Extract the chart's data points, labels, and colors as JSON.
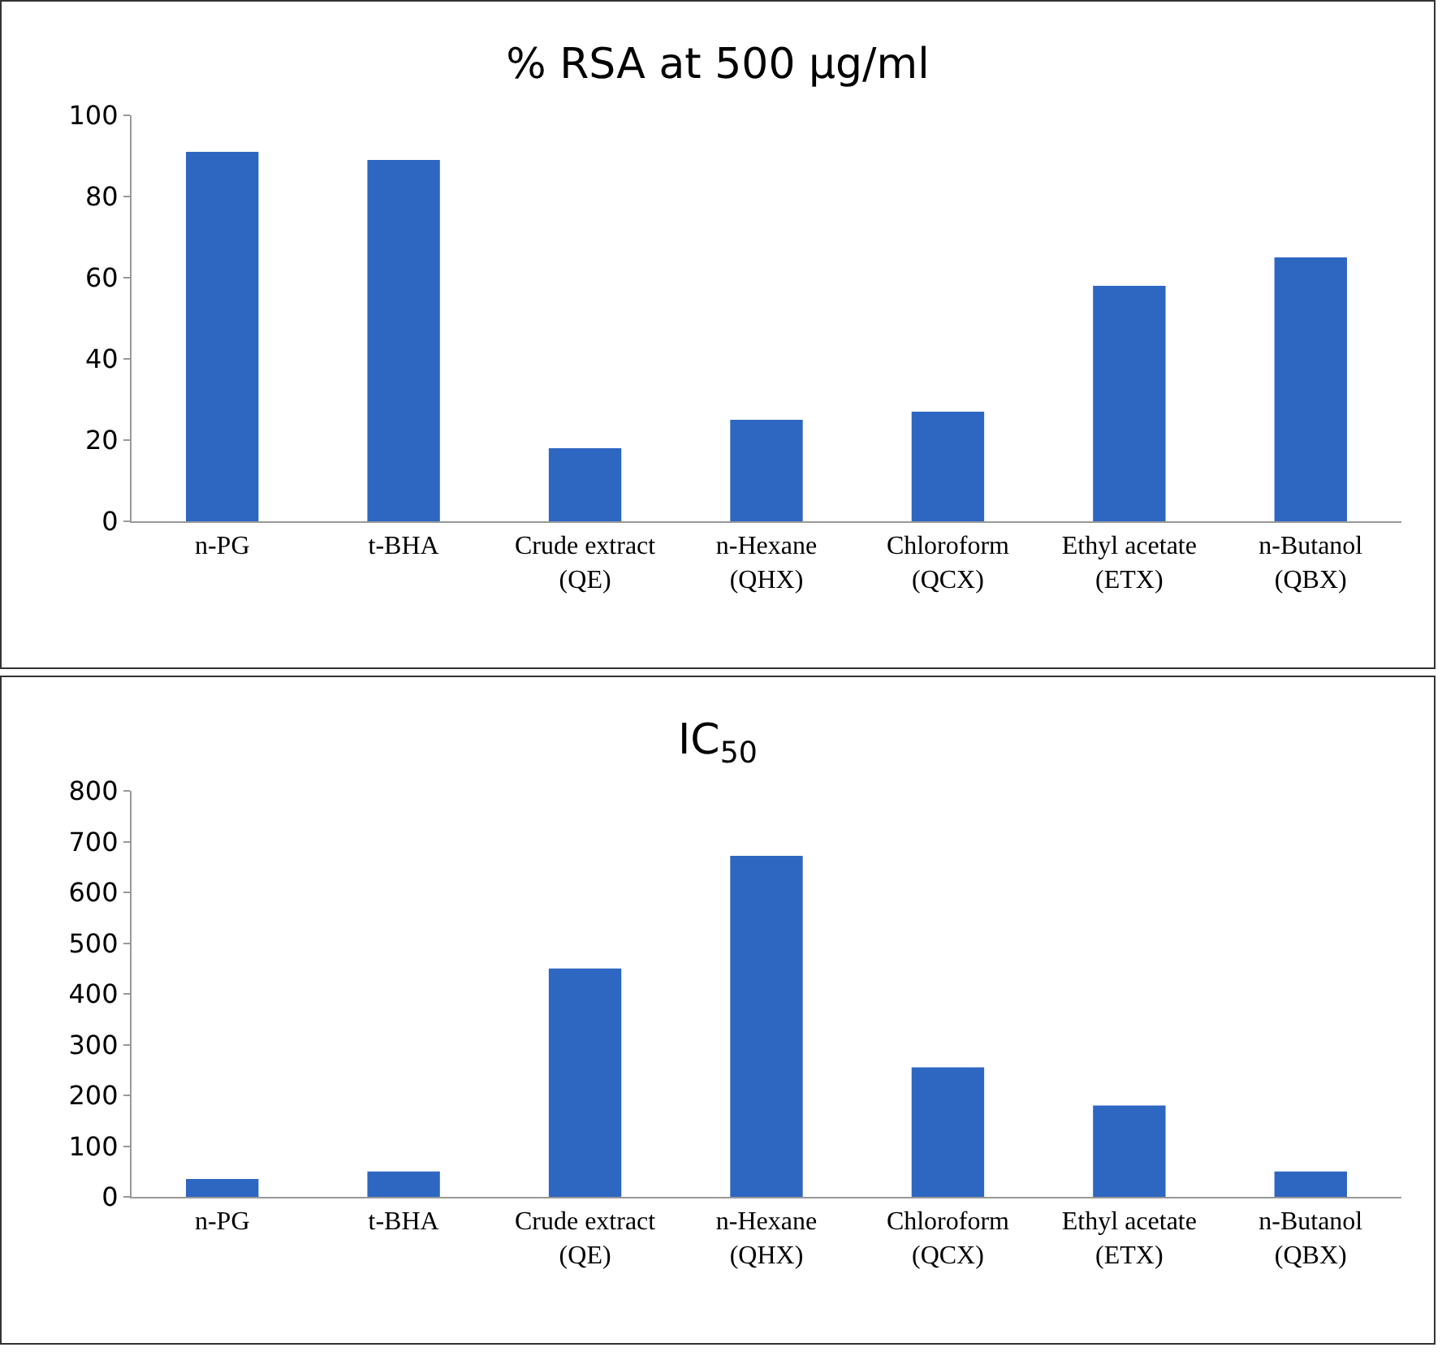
{
  "chart_data": [
    {
      "type": "bar",
      "title": "% RSA at 500 µg/ml",
      "categories": [
        "n-PG",
        "t-BHA",
        "Crude extract\n(QE)",
        "n-Hexane\n(QHX)",
        "Chloroform\n(QCX)",
        "Ethyl acetate\n(ETX)",
        "n-Butanol\n(QBX)"
      ],
      "values": [
        91,
        89,
        18,
        25,
        27,
        58,
        65
      ],
      "color": "#2e67c2",
      "ylim": [
        0,
        100
      ],
      "yticks": [
        0,
        20,
        40,
        60,
        80,
        100
      ],
      "grid": false
    },
    {
      "type": "bar",
      "title": "IC$_{50}$",
      "categories": [
        "n-PG",
        "t-BHA",
        "Crude extract\n(QE)",
        "n-Hexane\n(QHX)",
        "Chloroform\n(QCX)",
        "Ethyl acetate\n(ETX)",
        "n-Butanol\n(QBX)"
      ],
      "values": [
        35,
        50,
        450,
        672,
        255,
        180,
        50
      ],
      "color": "#2e67c2",
      "ylim": [
        0,
        800
      ],
      "yticks": [
        0,
        100,
        200,
        300,
        400,
        500,
        600,
        700,
        800
      ],
      "grid": false
    }
  ]
}
